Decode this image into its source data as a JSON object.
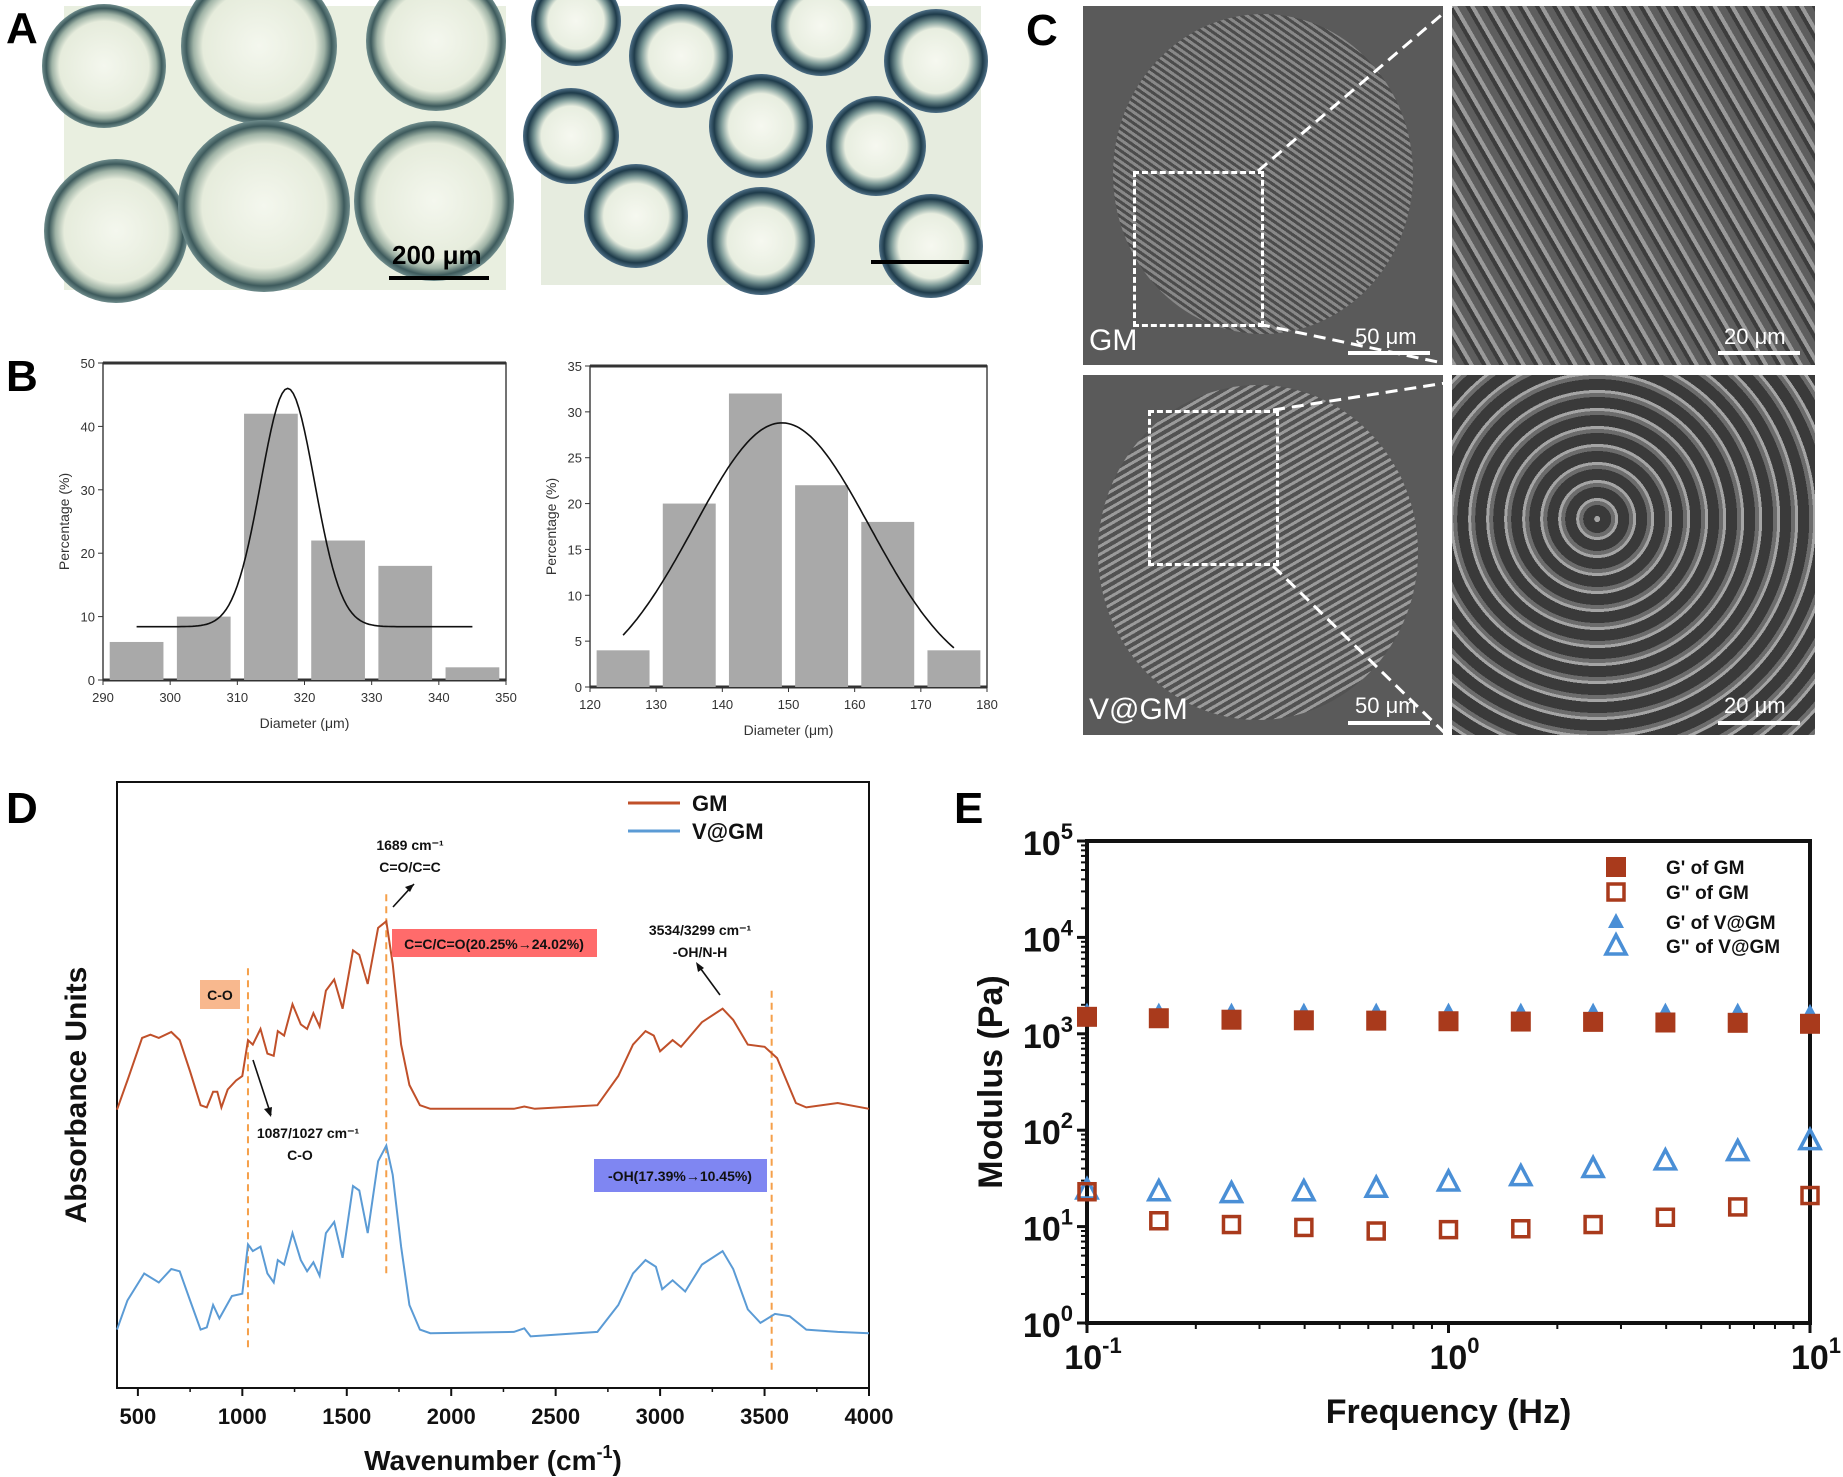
{
  "panel_labels": {
    "a": "A",
    "b": "B",
    "c": "C",
    "d": "D",
    "e": "E"
  },
  "panel_a": {
    "scale_bar_label": "200 μm"
  },
  "panel_c": {
    "top_label": "GM",
    "bottom_label": "V@GM",
    "overview_scale": "50 μm",
    "zoom_scale": "20 μm"
  },
  "colors": {
    "gm": "#c0502a",
    "vgm": "#5b9bd5",
    "bar": "#a9a9a9",
    "dash": "#f5a04a",
    "gm_marker": "#a93a1c",
    "vgm_marker": "#4a8fd6",
    "red_box": "#ff6b6b",
    "peach_box": "#f8b88e",
    "blue_box": "#7f86f2"
  },
  "chart_data": [
    {
      "id": "B-left",
      "type": "bar",
      "title": "",
      "xlabel": "Diameter (μm)",
      "ylabel": "Percentage (%)",
      "xlim": [
        290,
        350
      ],
      "ylim": [
        0,
        50
      ],
      "xticks": [
        290,
        300,
        310,
        320,
        330,
        340,
        350
      ],
      "yticks": [
        0,
        10,
        20,
        30,
        40,
        50
      ],
      "bin_centers": [
        295,
        305,
        315,
        325,
        335,
        345
      ],
      "values": [
        6,
        10,
        42,
        22,
        18,
        2
      ],
      "fit": {
        "type": "gaussian",
        "center": 317.5,
        "amplitude": 37.6,
        "sigma": 4.0,
        "baseline": 8.4,
        "range": [
          295,
          345
        ]
      }
    },
    {
      "id": "B-right",
      "type": "bar",
      "title": "",
      "xlabel": "Diameter (μm)",
      "ylabel": "Percentage (%)",
      "xlim": [
        120,
        180
      ],
      "ylim": [
        0,
        35
      ],
      "xticks": [
        120,
        130,
        140,
        150,
        160,
        170,
        180
      ],
      "yticks": [
        0,
        5,
        10,
        15,
        20,
        25,
        30,
        35
      ],
      "bin_centers": [
        125,
        135,
        145,
        155,
        165,
        175
      ],
      "values": [
        4,
        20,
        32,
        22,
        18,
        4
      ],
      "fit": {
        "type": "gaussian",
        "center": 149,
        "amplitude": 28.8,
        "sigma": 13.3,
        "baseline": 0,
        "range": [
          125,
          175
        ]
      }
    },
    {
      "id": "D",
      "type": "line",
      "title": "",
      "xlabel_main": "Wavenumber (cm",
      "xlabel_sup": "-1",
      "xlabel_end": ")",
      "ylabel": "Absorbance Units",
      "xlim": [
        400,
        4000
      ],
      "ylim": [
        0,
        135
      ],
      "xticks": [
        500,
        1000,
        1500,
        2000,
        2500,
        3000,
        3500,
        4000
      ],
      "legend": {
        "placement": "top-right",
        "entries": [
          "GM",
          "V@GM"
        ]
      },
      "series": [
        {
          "name": "GM",
          "x": [
            400,
            450,
            520,
            560,
            600,
            660,
            700,
            750,
            800,
            830,
            860,
            880,
            900,
            930,
            970,
            1000,
            1027,
            1050,
            1087,
            1120,
            1150,
            1170,
            1200,
            1240,
            1280,
            1310,
            1340,
            1370,
            1400,
            1440,
            1480,
            1530,
            1560,
            1600,
            1650,
            1689,
            1720,
            1760,
            1800,
            1850,
            1900,
            2300,
            2350,
            2400,
            2700,
            2800,
            2870,
            2930,
            2970,
            3000,
            3060,
            3100,
            3200,
            3299,
            3350,
            3420,
            3500,
            3560,
            3650,
            3700,
            3850,
            4000
          ],
          "y": [
            62.0,
            68.5,
            78.0,
            78.7,
            78.0,
            79.3,
            77.5,
            70.5,
            63.0,
            62.5,
            66.0,
            66.0,
            62.5,
            66.5,
            68.5,
            69.5,
            77.5,
            76.5,
            80.0,
            74.5,
            74.0,
            79.5,
            78.5,
            85.5,
            81.0,
            80.0,
            83.5,
            80.5,
            88.5,
            91.0,
            84.5,
            97.5,
            96.5,
            90.0,
            102.5,
            104.0,
            94.5,
            76.5,
            67.5,
            63.0,
            62.2,
            62.2,
            62.7,
            62.2,
            63.0,
            69.5,
            76.5,
            79.5,
            78.5,
            75.0,
            77.5,
            76.0,
            81.5,
            84.5,
            82.0,
            76.5,
            76.0,
            73.5,
            63.5,
            62.5,
            63.5,
            62.2
          ]
        },
        {
          "name": "V@GM",
          "x": [
            400,
            450,
            530,
            600,
            660,
            700,
            750,
            800,
            830,
            860,
            890,
            950,
            1000,
            1027,
            1050,
            1087,
            1120,
            1150,
            1170,
            1200,
            1240,
            1280,
            1310,
            1340,
            1370,
            1400,
            1440,
            1480,
            1530,
            1560,
            1600,
            1650,
            1689,
            1720,
            1760,
            1800,
            1850,
            1900,
            2300,
            2350,
            2380,
            2700,
            2800,
            2870,
            2930,
            2980,
            3010,
            3060,
            3120,
            3200,
            3299,
            3350,
            3420,
            3480,
            3550,
            3620,
            3700,
            3850,
            4000
          ],
          "y": [
            13.0,
            19.5,
            25.5,
            23.5,
            26.5,
            26.0,
            19.5,
            13.0,
            13.5,
            18.5,
            15.5,
            20.5,
            21.0,
            32.0,
            30.5,
            31.5,
            25.5,
            23.5,
            28.5,
            27.5,
            34.5,
            28.5,
            26.0,
            28.0,
            25.0,
            34.5,
            37.0,
            29.0,
            45.0,
            44.0,
            34.5,
            50.5,
            54.0,
            47.5,
            31.5,
            18.5,
            13.0,
            12.2,
            12.5,
            13.3,
            11.5,
            12.5,
            18.5,
            25.5,
            28.5,
            27.0,
            22.0,
            24.0,
            21.5,
            27.5,
            30.5,
            26.5,
            17.5,
            14.5,
            16.5,
            16.0,
            13.0,
            12.5,
            12.2
          ]
        }
      ],
      "dashed_lines": [
        {
          "x": 1027,
          "y_range": [
            8,
            93.5
          ]
        },
        {
          "x": 1689,
          "y_range": [
            24.5,
            110
          ]
        },
        {
          "x": 3534,
          "y_range": [
            3,
            88.5
          ]
        }
      ],
      "annotations": {
        "peak_1689": "1689 cm⁻¹",
        "peak_1689_group": "C=O/C=C",
        "red_box": "C=C/C=O(20.25%→24.02%)",
        "peach_box": "C-O",
        "peak_1087": "1087/1027 cm⁻¹",
        "peak_1087_group": "C-O",
        "peak_3534": "3534/3299 cm⁻¹",
        "peak_3534_group": "-OH/N-H",
        "blue_box": "-OH(17.39%→10.45%)"
      }
    },
    {
      "id": "E",
      "type": "scatter",
      "title": "",
      "xlabel": "Frequency (Hz)",
      "ylabel": "Modulus (Pa)",
      "xscale": "log",
      "yscale": "log",
      "xlim": [
        0.1,
        10
      ],
      "ylim": [
        1,
        100000
      ],
      "xtick_exponents": [
        -1,
        0,
        1
      ],
      "ytick_exponents": [
        0,
        1,
        2,
        3,
        4,
        5
      ],
      "tick_base": "10",
      "legend": {
        "placement": "top-right"
      },
      "x": [
        0.1,
        0.158,
        0.251,
        0.398,
        0.631,
        1.0,
        1.585,
        2.512,
        3.981,
        6.31,
        10.0
      ],
      "series": [
        {
          "name": "G' of GM",
          "marker": "filled-square",
          "values": [
            1500,
            1450,
            1400,
            1380,
            1370,
            1350,
            1340,
            1330,
            1310,
            1300,
            1270
          ]
        },
        {
          "name": "G\" of GM",
          "marker": "open-square",
          "values": [
            23,
            11.5,
            10.5,
            9.8,
            9.0,
            9.3,
            9.5,
            10.5,
            12.5,
            16,
            21
          ]
        },
        {
          "name": "G' of V@GM",
          "marker": "filled-triangle",
          "values": [
            1700,
            1700,
            1700,
            1700,
            1700,
            1700,
            1700,
            1700,
            1700,
            1700,
            1650
          ]
        },
        {
          "name": "G\" of V@GM",
          "marker": "open-triangle",
          "values": [
            24,
            23,
            22,
            23,
            25,
            29,
            33,
            40,
            48,
            60,
            78
          ]
        }
      ]
    }
  ]
}
